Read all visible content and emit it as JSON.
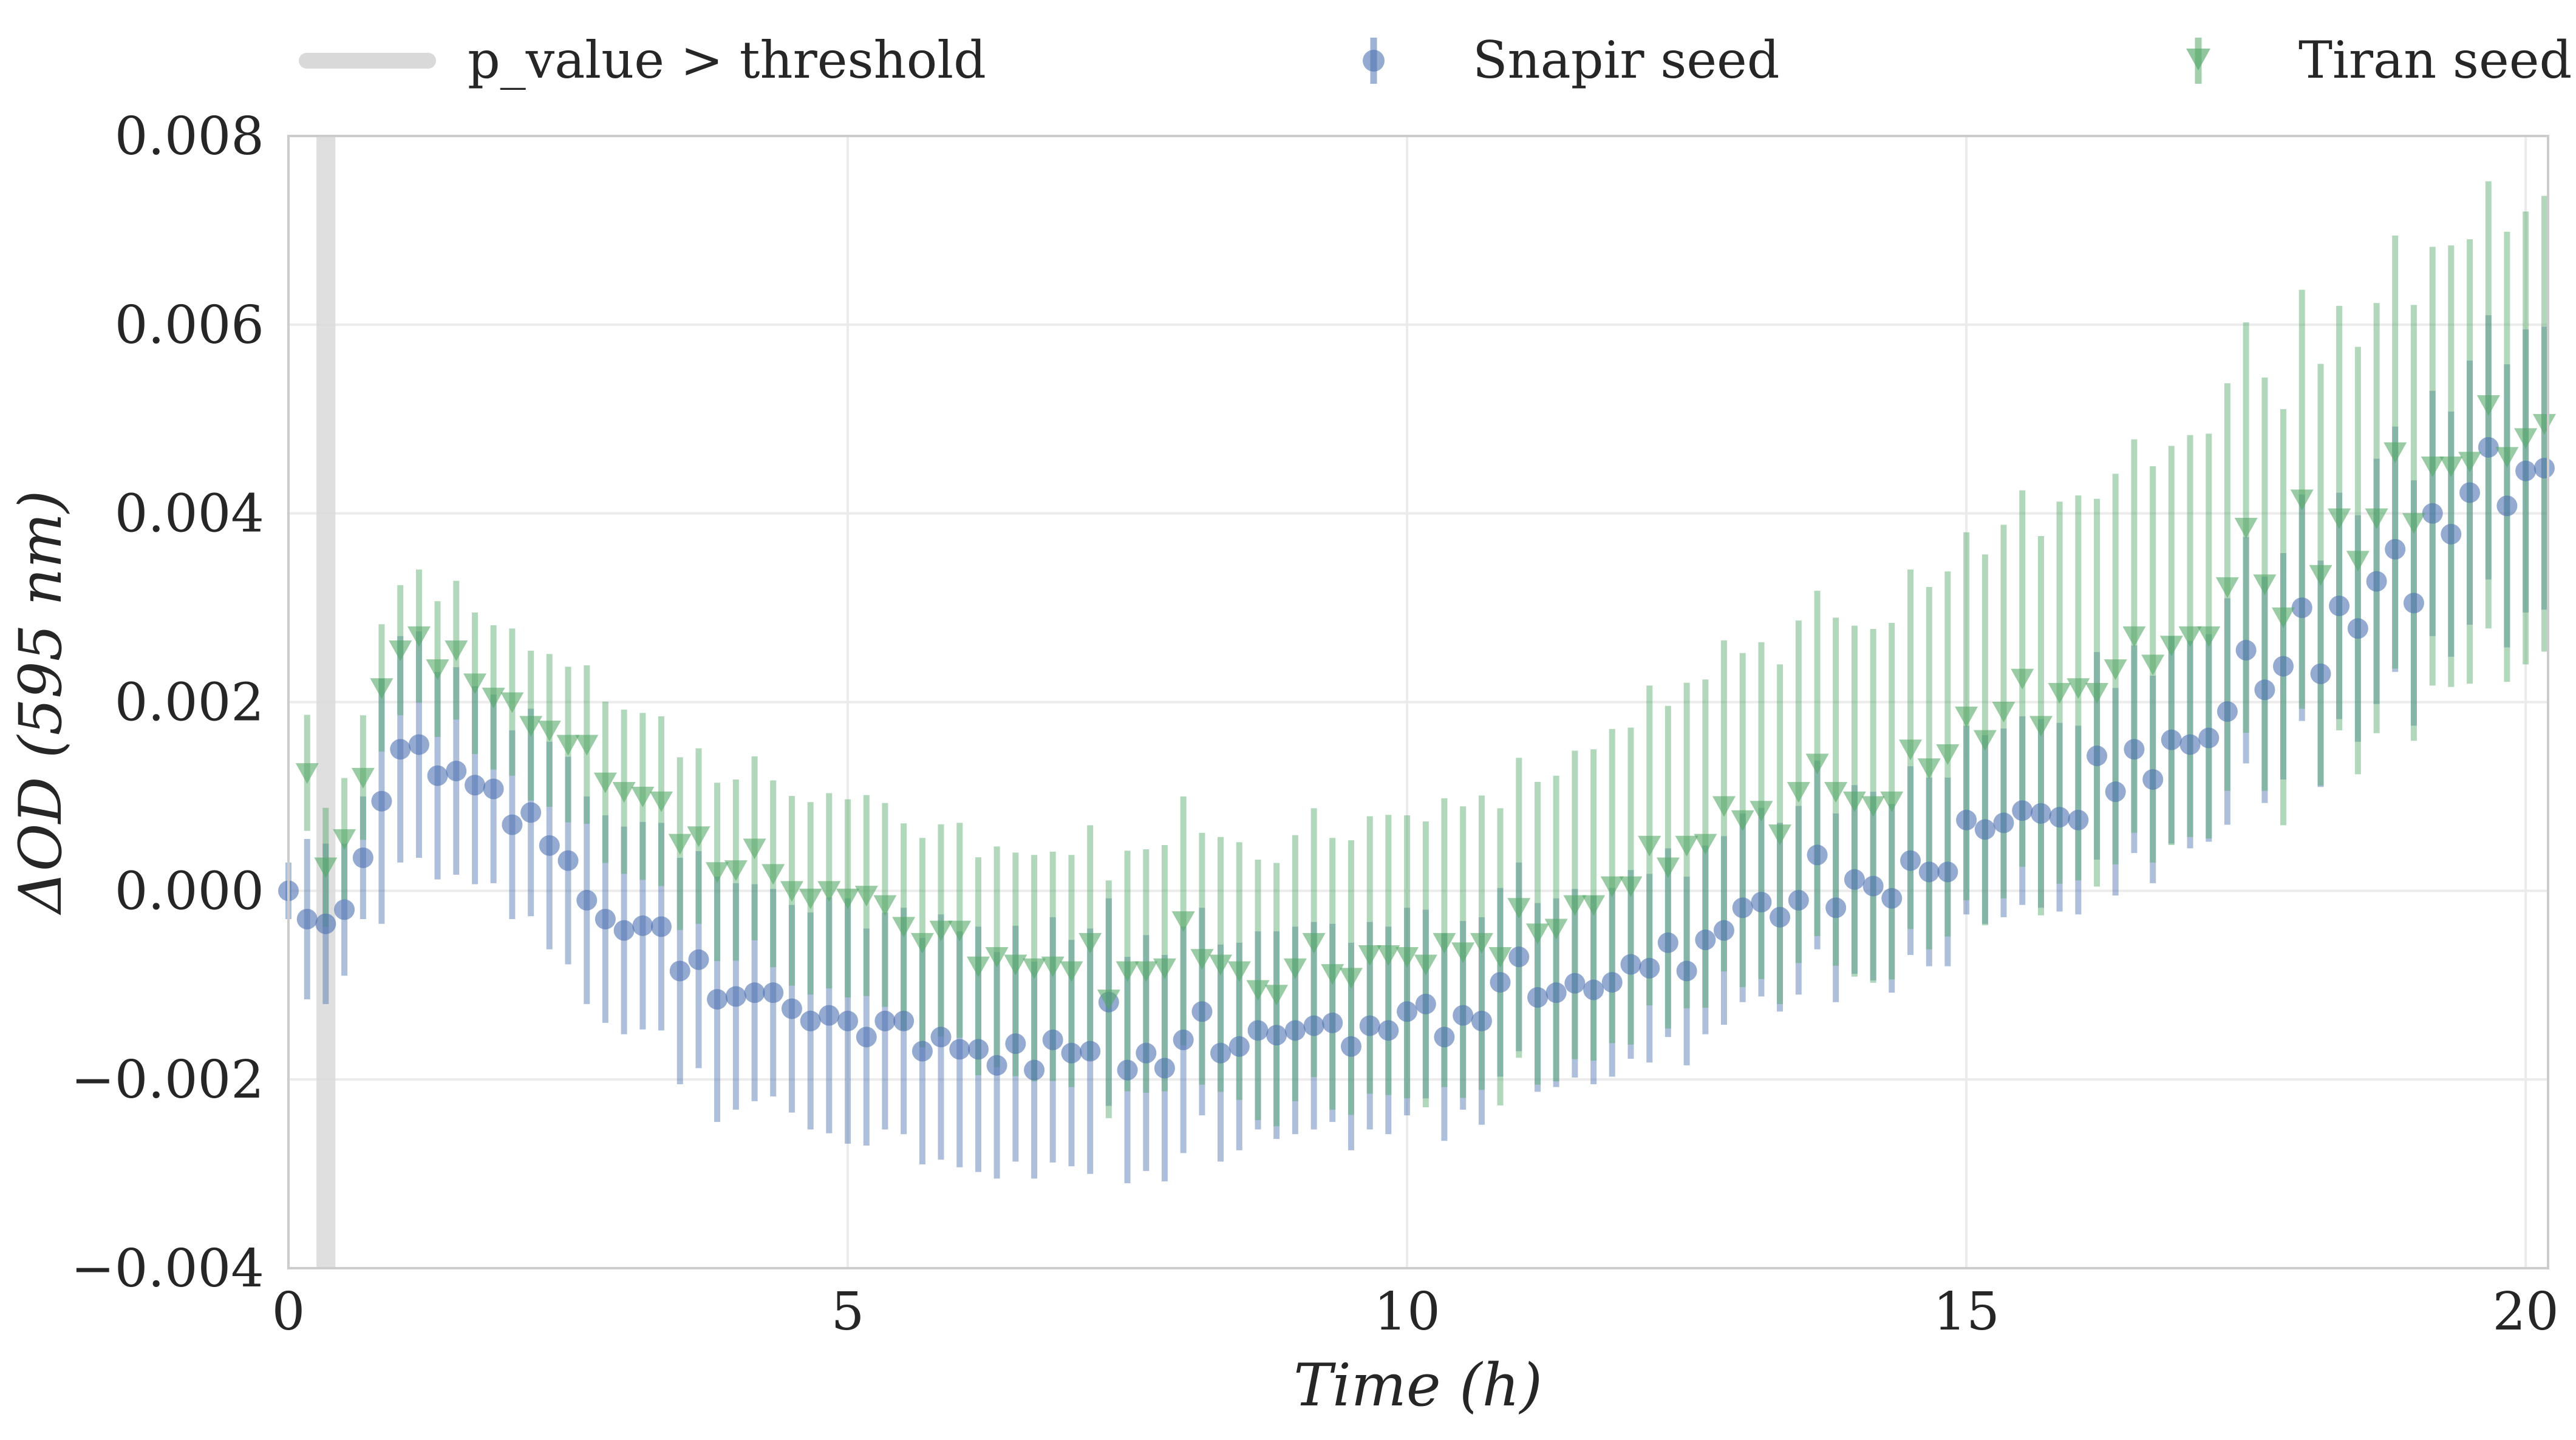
{
  "chart_data": {
    "type": "scatter",
    "xlabel": "Time (h)",
    "ylabel": "ΔOD (595 nm)",
    "xlim": [
      0,
      20.2
    ],
    "ylim": [
      -0.004,
      0.008
    ],
    "x_ticks": [
      "0",
      "5",
      "10",
      "15",
      "20"
    ],
    "y_ticks": [
      "−0.004",
      "−0.002",
      "0.000",
      "0.002",
      "0.004",
      "0.006",
      "0.008"
    ],
    "grid": true,
    "legend_position": "top",
    "legend": [
      "p_value > threshold",
      "Snapir seed",
      "Tiran seed"
    ],
    "threshold_band": {
      "label": "p_value > threshold",
      "x_start": 0.25,
      "x_end": 0.42
    },
    "series": [
      {
        "name": "Snapir seed",
        "marker": "circle",
        "color": "#4c72b0",
        "x": [
          0,
          0.167,
          0.333,
          0.5,
          0.667,
          0.833,
          1.0,
          1.167,
          1.333,
          1.5,
          1.667,
          1.833,
          2.0,
          2.167,
          2.333,
          2.5,
          2.667,
          2.833,
          3.0,
          3.167,
          3.333,
          3.5,
          3.667,
          3.833,
          4.0,
          4.167,
          4.333,
          4.5,
          4.667,
          4.833,
          5.0,
          5.167,
          5.333,
          5.5,
          5.667,
          5.833,
          6.0,
          6.167,
          6.333,
          6.5,
          6.667,
          6.833,
          7.0,
          7.167,
          7.333,
          7.5,
          7.667,
          7.833,
          8.0,
          8.167,
          8.333,
          8.5,
          8.667,
          8.833,
          9.0,
          9.167,
          9.333,
          9.5,
          9.667,
          9.833,
          10.0,
          10.167,
          10.333,
          10.5,
          10.667,
          10.833,
          11.0,
          11.167,
          11.333,
          11.5,
          11.667,
          11.833,
          12.0,
          12.167,
          12.333,
          12.5,
          12.667,
          12.833,
          13.0,
          13.167,
          13.333,
          13.5,
          13.667,
          13.833,
          14.0,
          14.167,
          14.333,
          14.5,
          14.667,
          14.833,
          15.0,
          15.167,
          15.333,
          15.5,
          15.667,
          15.833,
          16.0,
          16.167,
          16.333,
          16.5,
          16.667,
          16.833,
          17.0,
          17.167,
          17.333,
          17.5,
          17.667,
          17.833,
          18.0,
          18.167,
          18.333,
          18.5,
          18.667,
          18.833,
          19.0,
          19.167,
          19.333,
          19.5,
          19.667,
          19.833,
          20.0,
          20.167
        ],
        "y": [
          0.0,
          -0.0003,
          -0.00035,
          -0.0002,
          0.00035,
          0.00095,
          0.0015,
          0.00155,
          0.00122,
          0.00127,
          0.00112,
          0.00108,
          0.0007,
          0.00083,
          0.00048,
          0.00032,
          -0.0001,
          -0.0003,
          -0.00042,
          -0.00037,
          -0.00038,
          -0.00085,
          -0.00073,
          -0.00115,
          -0.00112,
          -0.00108,
          -0.00108,
          -0.00125,
          -0.00138,
          -0.00132,
          -0.00138,
          -0.00155,
          -0.00138,
          -0.00138,
          -0.0017,
          -0.00155,
          -0.00168,
          -0.00168,
          -0.00185,
          -0.00162,
          -0.0019,
          -0.00158,
          -0.00172,
          -0.0017,
          -0.00118,
          -0.0019,
          -0.00172,
          -0.00188,
          -0.00158,
          -0.00128,
          -0.00172,
          -0.00165,
          -0.00148,
          -0.00153,
          -0.00148,
          -0.00143,
          -0.0014,
          -0.00165,
          -0.00143,
          -0.00148,
          -0.00128,
          -0.0012,
          -0.00155,
          -0.00132,
          -0.00138,
          -0.00097,
          -0.0007,
          -0.00113,
          -0.00108,
          -0.00098,
          -0.00105,
          -0.00097,
          -0.00078,
          -0.00082,
          -0.00055,
          -0.00085,
          -0.00052,
          -0.00042,
          -0.00018,
          -0.00012,
          -0.00028,
          -0.0001,
          0.00038,
          -0.00018,
          0.00012,
          5e-05,
          -8e-05,
          0.00032,
          0.0002,
          0.0002,
          0.00075,
          0.00065,
          0.00072,
          0.00085,
          0.00082,
          0.00078,
          0.00075,
          0.00143,
          0.00105,
          0.0015,
          0.00118,
          0.0016,
          0.00155,
          0.00162,
          0.0019,
          0.00255,
          0.00213,
          0.00238,
          0.003,
          0.0023,
          0.00302,
          0.00278,
          0.00328,
          0.00362,
          0.00305,
          0.004,
          0.00378,
          0.00422,
          0.0047,
          0.00408,
          0.00445,
          0.00448
        ],
        "err": [
          0.0003,
          0.00085,
          0.00085,
          0.0007,
          0.00065,
          0.0013,
          0.0012,
          0.0012,
          0.0011,
          0.0011,
          0.00105,
          0.001,
          0.001,
          0.0011,
          0.0011,
          0.0011,
          0.0011,
          0.0011,
          0.0011,
          0.0011,
          0.0011,
          0.0012,
          0.00115,
          0.0013,
          0.0012,
          0.00115,
          0.0011,
          0.0011,
          0.00115,
          0.00125,
          0.0013,
          0.00115,
          0.00115,
          0.0012,
          0.0012,
          0.0013,
          0.00125,
          0.0013,
          0.0012,
          0.00125,
          0.00115,
          0.0013,
          0.0012,
          0.0013,
          0.0011,
          0.0012,
          0.00125,
          0.0012,
          0.0012,
          0.0011,
          0.00115,
          0.0011,
          0.00105,
          0.0011,
          0.0011,
          0.0011,
          0.00105,
          0.0011,
          0.0011,
          0.0011,
          0.0011,
          0.001,
          0.0011,
          0.001,
          0.0011,
          0.001,
          0.001,
          0.001,
          0.001,
          0.001,
          0.001,
          0.001,
          0.001,
          0.001,
          0.001,
          0.001,
          0.001,
          0.001,
          0.001,
          0.001,
          0.001,
          0.001,
          0.001,
          0.001,
          0.001,
          0.001,
          0.001,
          0.001,
          0.001,
          0.001,
          0.001,
          0.001,
          0.001,
          0.001,
          0.001,
          0.001,
          0.001,
          0.0011,
          0.0011,
          0.0011,
          0.0011,
          0.0011,
          0.0011,
          0.0011,
          0.0012,
          0.0012,
          0.0012,
          0.0012,
          0.0012,
          0.0012,
          0.0012,
          0.0012,
          0.0013,
          0.0013,
          0.0013,
          0.0013,
          0.0013,
          0.0014,
          0.0014,
          0.0015,
          0.0015,
          0.0015
        ]
      },
      {
        "name": "Tiran seed",
        "marker": "triangle-down",
        "color": "#55a868",
        "x": [
          0.167,
          0.333,
          0.5,
          0.667,
          0.833,
          1.0,
          1.167,
          1.333,
          1.5,
          1.667,
          1.833,
          2.0,
          2.167,
          2.333,
          2.5,
          2.667,
          2.833,
          3.0,
          3.167,
          3.333,
          3.5,
          3.667,
          3.833,
          4.0,
          4.167,
          4.333,
          4.5,
          4.667,
          4.833,
          5.0,
          5.167,
          5.333,
          5.5,
          5.667,
          5.833,
          6.0,
          6.167,
          6.333,
          6.5,
          6.667,
          6.833,
          7.0,
          7.167,
          7.333,
          7.5,
          7.667,
          7.833,
          8.0,
          8.167,
          8.333,
          8.5,
          8.667,
          8.833,
          9.0,
          9.167,
          9.333,
          9.5,
          9.667,
          9.833,
          10.0,
          10.167,
          10.333,
          10.5,
          10.667,
          10.833,
          11.0,
          11.167,
          11.333,
          11.5,
          11.667,
          11.833,
          12.0,
          12.167,
          12.333,
          12.5,
          12.667,
          12.833,
          13.0,
          13.167,
          13.333,
          13.5,
          13.667,
          13.833,
          14.0,
          14.167,
          14.333,
          14.5,
          14.667,
          14.833,
          15.0,
          15.167,
          15.333,
          15.5,
          15.667,
          15.833,
          16.0,
          16.167,
          16.333,
          16.5,
          16.667,
          16.833,
          17.0,
          17.167,
          17.333,
          17.5,
          17.667,
          17.833,
          18.0,
          18.167,
          18.333,
          18.5,
          18.667,
          18.833,
          19.0,
          19.167,
          19.333,
          19.5,
          19.667,
          19.833,
          20.0,
          20.167
        ],
        "y": [
          0.00125,
          0.00025,
          0.00055,
          0.0012,
          0.00215,
          0.00255,
          0.0027,
          0.00235,
          0.00255,
          0.0022,
          0.00205,
          0.002,
          0.00175,
          0.0017,
          0.00155,
          0.00155,
          0.00115,
          0.00105,
          0.001,
          0.00095,
          0.0005,
          0.00058,
          0.0002,
          0.00022,
          0.00045,
          0.00018,
          0.0,
          -8e-05,
          0.0,
          -8e-05,
          -5e-05,
          -0.00015,
          -0.00038,
          -0.00055,
          -0.00042,
          -0.00042,
          -0.0008,
          -0.0007,
          -0.00078,
          -0.00082,
          -0.0008,
          -0.00085,
          -0.00055,
          -0.00115,
          -0.00085,
          -0.00085,
          -0.00082,
          -0.00032,
          -0.00072,
          -0.00078,
          -0.00085,
          -0.00105,
          -0.0011,
          -0.00082,
          -0.00055,
          -0.00088,
          -0.00092,
          -0.00068,
          -0.00068,
          -0.0007,
          -0.00078,
          -0.00055,
          -0.00065,
          -0.00055,
          -0.0007,
          -0.00018,
          -0.00045,
          -0.0004,
          -0.00015,
          -0.00015,
          5e-05,
          5e-05,
          0.00048,
          0.00025,
          0.00048,
          0.0005,
          0.0009,
          0.00075,
          0.00085,
          0.0006,
          0.00105,
          0.00135,
          0.00105,
          0.00095,
          0.0009,
          0.00095,
          0.0015,
          0.0013,
          0.00145,
          0.00185,
          0.0016,
          0.0019,
          0.00225,
          0.00175,
          0.0021,
          0.00215,
          0.0021,
          0.00235,
          0.0027,
          0.0024,
          0.0026,
          0.0027,
          0.0027,
          0.00322,
          0.00385,
          0.00325,
          0.0029,
          0.00415,
          0.00335,
          0.00395,
          0.0035,
          0.00395,
          0.00465,
          0.0039,
          0.0045,
          0.0045,
          0.00455,
          0.00515,
          0.0046,
          0.0048,
          0.00495
        ]
      }
    ]
  }
}
